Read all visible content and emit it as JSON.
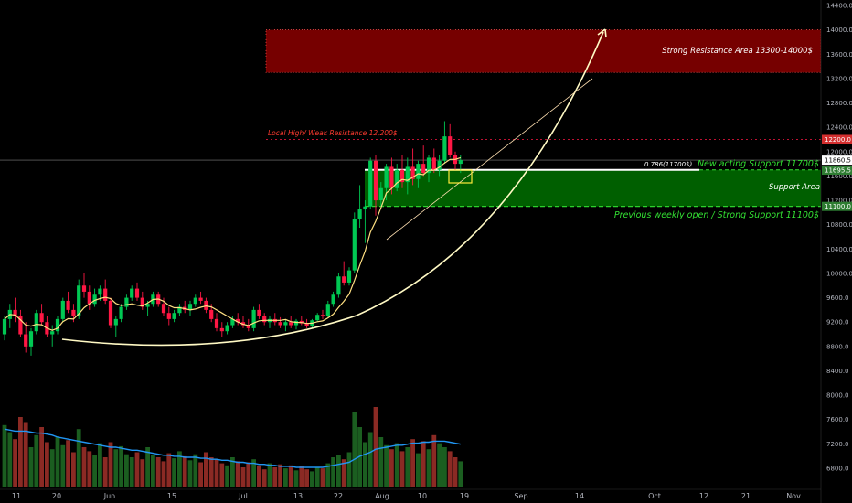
{
  "chart_data": {
    "type": "candlestick",
    "title": "",
    "price_axis": {
      "ticks": [
        "14400.0",
        "14000.0",
        "13600.0",
        "13200.0",
        "12800.0",
        "12400.0",
        "12000.0",
        "11600.0",
        "11200.0",
        "10800.0",
        "10400.0",
        "10000.0",
        "9600.0",
        "9200.0",
        "8800.0",
        "8400.0",
        "8000.0",
        "7600.0",
        "7200.0",
        "6800.0"
      ],
      "ylim": [
        6700,
        14600
      ],
      "price_labels": [
        {
          "text": "12200.0",
          "value": 12200,
          "color": "#d32f2f"
        },
        {
          "text": "11860.5",
          "value": 11860,
          "color": "#ffffff"
        },
        {
          "text": "11695.5",
          "value": 11696,
          "color": "#2e7d32"
        },
        {
          "text": "11100.0",
          "value": 11100,
          "color": "#2e7d32"
        }
      ]
    },
    "time_axis": {
      "ticks": [
        "11",
        "20",
        "Jun",
        "15",
        "Jul",
        "13",
        "22",
        "Aug",
        "10",
        "19",
        "Sep",
        "14",
        "Oct",
        "12",
        "21",
        "Nov"
      ]
    },
    "annotations": {
      "strong_resistance": "Strong Resistance Area 13300-14000$",
      "local_high": "Local High/ Weak Resistance 12,200$",
      "fib_label": "0.786(11700$)",
      "new_support": "New acting Support 11700$",
      "support_area": "Support Area",
      "weekly_open": "Previous weekly open / Strong Support 11100$"
    },
    "levels": {
      "strong_resistance": [
        13300,
        14000
      ],
      "local_high": 12200,
      "new_support": 11700,
      "support_area": [
        11100,
        11700
      ],
      "weekly_open": 11100,
      "current_price": 11860
    },
    "colors": {
      "up": "#26a69a",
      "candle_up": "#00c853",
      "candle_down": "#ff1744",
      "vol_up": "#1b5e20",
      "vol_down": "#8b2a24",
      "resistance": "#8b0000",
      "support": "#006400",
      "ma": "#ffe082",
      "vol_ma": "#2196f3",
      "arc": "#fff9c4"
    },
    "candles": [
      [
        9000,
        9300,
        8900,
        9250
      ],
      [
        9250,
        9500,
        9100,
        9400
      ],
      [
        9400,
        9600,
        9200,
        9300
      ],
      [
        9300,
        9400,
        8950,
        9000
      ],
      [
        9000,
        9200,
        8700,
        8800
      ],
      [
        8800,
        9100,
        8650,
        9050
      ],
      [
        9050,
        9400,
        9000,
        9350
      ],
      [
        9350,
        9500,
        9150,
        9200
      ],
      [
        9200,
        9300,
        8950,
        9000
      ],
      [
        9000,
        9150,
        8800,
        9050
      ],
      [
        9050,
        9300,
        9000,
        9250
      ],
      [
        9250,
        9600,
        9200,
        9550
      ],
      [
        9550,
        9700,
        9350,
        9400
      ],
      [
        9400,
        9500,
        9200,
        9300
      ],
      [
        9300,
        9900,
        9250,
        9800
      ],
      [
        9800,
        10000,
        9600,
        9700
      ],
      [
        9700,
        9800,
        9400,
        9500
      ],
      [
        9500,
        9750,
        9450,
        9650
      ],
      [
        9650,
        9800,
        9550,
        9750
      ],
      [
        9750,
        9900,
        9500,
        9550
      ],
      [
        9550,
        9600,
        9100,
        9150
      ],
      [
        9150,
        9300,
        8950,
        9250
      ],
      [
        9250,
        9500,
        9200,
        9450
      ],
      [
        9450,
        9650,
        9400,
        9600
      ],
      [
        9600,
        9800,
        9550,
        9750
      ],
      [
        9750,
        9850,
        9550,
        9600
      ],
      [
        9600,
        9700,
        9400,
        9450
      ],
      [
        9450,
        9550,
        9300,
        9500
      ],
      [
        9500,
        9700,
        9450,
        9650
      ],
      [
        9650,
        9700,
        9450,
        9500
      ],
      [
        9500,
        9600,
        9300,
        9350
      ],
      [
        9350,
        9450,
        9150,
        9250
      ],
      [
        9250,
        9400,
        9200,
        9350
      ],
      [
        9350,
        9500,
        9300,
        9450
      ],
      [
        9450,
        9550,
        9350,
        9400
      ],
      [
        9400,
        9550,
        9300,
        9500
      ],
      [
        9500,
        9650,
        9450,
        9600
      ],
      [
        9600,
        9700,
        9500,
        9550
      ],
      [
        9550,
        9600,
        9350,
        9400
      ],
      [
        9400,
        9500,
        9200,
        9250
      ],
      [
        9250,
        9350,
        9050,
        9100
      ],
      [
        9100,
        9200,
        8950,
        9050
      ],
      [
        9050,
        9200,
        9000,
        9150
      ],
      [
        9150,
        9300,
        9100,
        9250
      ],
      [
        9250,
        9350,
        9150,
        9200
      ],
      [
        9200,
        9300,
        9100,
        9150
      ],
      [
        9150,
        9250,
        9050,
        9100
      ],
      [
        9100,
        9450,
        9050,
        9400
      ],
      [
        9400,
        9500,
        9250,
        9300
      ],
      [
        9300,
        9350,
        9150,
        9200
      ],
      [
        9200,
        9300,
        9100,
        9250
      ],
      [
        9250,
        9350,
        9150,
        9200
      ],
      [
        9200,
        9280,
        9100,
        9150
      ],
      [
        9150,
        9250,
        9050,
        9200
      ],
      [
        9200,
        9300,
        9100,
        9150
      ],
      [
        9150,
        9250,
        9080,
        9220
      ],
      [
        9220,
        9300,
        9150,
        9180
      ],
      [
        9180,
        9250,
        9100,
        9140
      ],
      [
        9140,
        9250,
        9100,
        9230
      ],
      [
        9230,
        9350,
        9200,
        9320
      ],
      [
        9320,
        9400,
        9250,
        9300
      ],
      [
        9300,
        9550,
        9280,
        9500
      ],
      [
        9500,
        9700,
        9450,
        9650
      ],
      [
        9650,
        10000,
        9600,
        9950
      ],
      [
        9950,
        10200,
        9800,
        9850
      ],
      [
        9850,
        10100,
        9800,
        10050
      ],
      [
        10050,
        11000,
        10000,
        10900
      ],
      [
        10900,
        11450,
        10750,
        11050
      ],
      [
        11050,
        11200,
        10500,
        11100
      ],
      [
        11100,
        11900,
        11050,
        11850
      ],
      [
        11850,
        11950,
        10950,
        11200
      ],
      [
        11200,
        11500,
        11100,
        11400
      ],
      [
        11400,
        11800,
        11200,
        11750
      ],
      [
        11750,
        11900,
        11300,
        11400
      ],
      [
        11400,
        11800,
        11350,
        11700
      ],
      [
        11700,
        11950,
        11400,
        11500
      ],
      [
        11500,
        11900,
        11300,
        11750
      ],
      [
        11750,
        12050,
        11450,
        11550
      ],
      [
        11550,
        11850,
        11400,
        11800
      ],
      [
        11800,
        12100,
        11600,
        11650
      ],
      [
        11650,
        11950,
        11500,
        11900
      ],
      [
        11900,
        12050,
        11650,
        11700
      ],
      [
        11700,
        11950,
        11600,
        11850
      ],
      [
        11850,
        12500,
        11800,
        12250
      ],
      [
        12250,
        12450,
        11900,
        11950
      ],
      [
        11950,
        12000,
        11700,
        11800
      ],
      [
        11800,
        11950,
        11650,
        11860
      ]
    ],
    "volume_axis_max": 100,
    "volumes": [
      62,
      55,
      48,
      70,
      65,
      40,
      52,
      60,
      45,
      38,
      50,
      42,
      47,
      35,
      58,
      40,
      36,
      32,
      44,
      30,
      45,
      38,
      41,
      33,
      30,
      35,
      28,
      40,
      32,
      30,
      26,
      34,
      29,
      36,
      31,
      27,
      33,
      25,
      35,
      30,
      28,
      24,
      22,
      30,
      26,
      20,
      25,
      28,
      22,
      18,
      24,
      20,
      23,
      19,
      22,
      17,
      21,
      18,
      16,
      20,
      19,
      24,
      30,
      32,
      28,
      35,
      75,
      60,
      45,
      55,
      80,
      50,
      42,
      38,
      44,
      36,
      40,
      48,
      34,
      46,
      38,
      52,
      44,
      40,
      36,
      30,
      26
    ],
    "volume_ma": [
      58,
      57,
      56,
      56,
      56,
      55,
      54,
      54,
      53,
      52,
      50,
      49,
      48,
      47,
      46,
      45,
      44,
      43,
      42,
      41,
      40,
      40,
      39,
      38,
      37,
      37,
      36,
      35,
      34,
      33,
      32,
      32,
      31,
      31,
      30,
      30,
      30,
      29,
      29,
      28,
      28,
      27,
      27,
      26,
      25,
      25,
      24,
      24,
      23,
      23,
      22,
      22,
      21,
      21,
      21,
      20,
      20,
      20,
      20,
      20,
      20,
      21,
      22,
      23,
      24,
      25,
      28,
      31,
      33,
      35,
      38,
      39,
      40,
      41,
      42,
      42,
      43,
      44,
      44,
      45,
      45,
      46,
      46,
      46,
      45,
      44,
      43
    ]
  }
}
